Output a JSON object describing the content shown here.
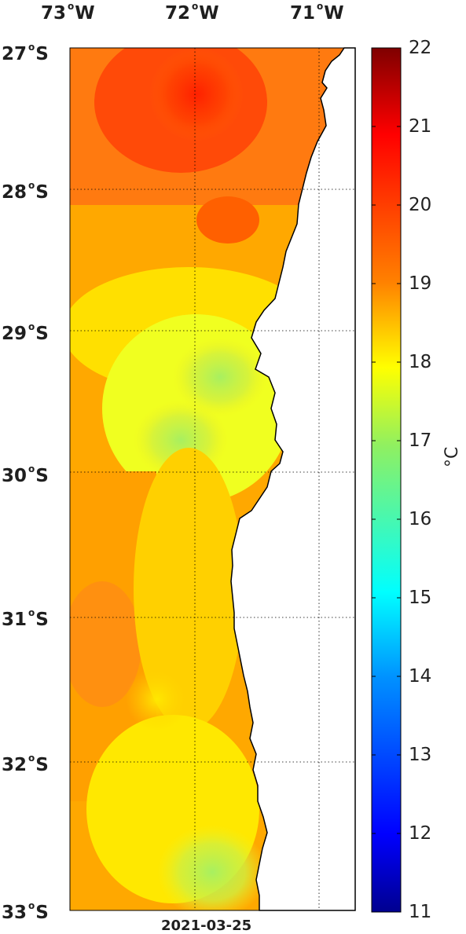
{
  "map": {
    "lon_labels": [
      "73",
      "72",
      "71"
    ],
    "lon_suffix": "W",
    "lat_labels": [
      "27",
      "28",
      "29",
      "30",
      "31",
      "32",
      "33"
    ],
    "lat_suffix": "S",
    "date": "2021-03-25",
    "extent": {
      "lon_min": -73.0,
      "lon_max": -70.7,
      "lat_min": -33.0,
      "lat_max": -27.0
    }
  },
  "colorbar": {
    "min": 11,
    "max": 22,
    "ticks": [
      "22",
      "21",
      "20",
      "19",
      "18",
      "17",
      "16",
      "15",
      "14",
      "13",
      "12",
      "11"
    ],
    "unit": "°C",
    "colormap": "jet",
    "colors": [
      "#7f0000",
      "#ff0000",
      "#ff8000",
      "#ffff00",
      "#80ff80",
      "#00ffff",
      "#0080ff",
      "#0000ff",
      "#00008f"
    ]
  },
  "colors": {
    "land": "#ffffff",
    "coastline": "#000000",
    "gridlines": "#000000"
  }
}
